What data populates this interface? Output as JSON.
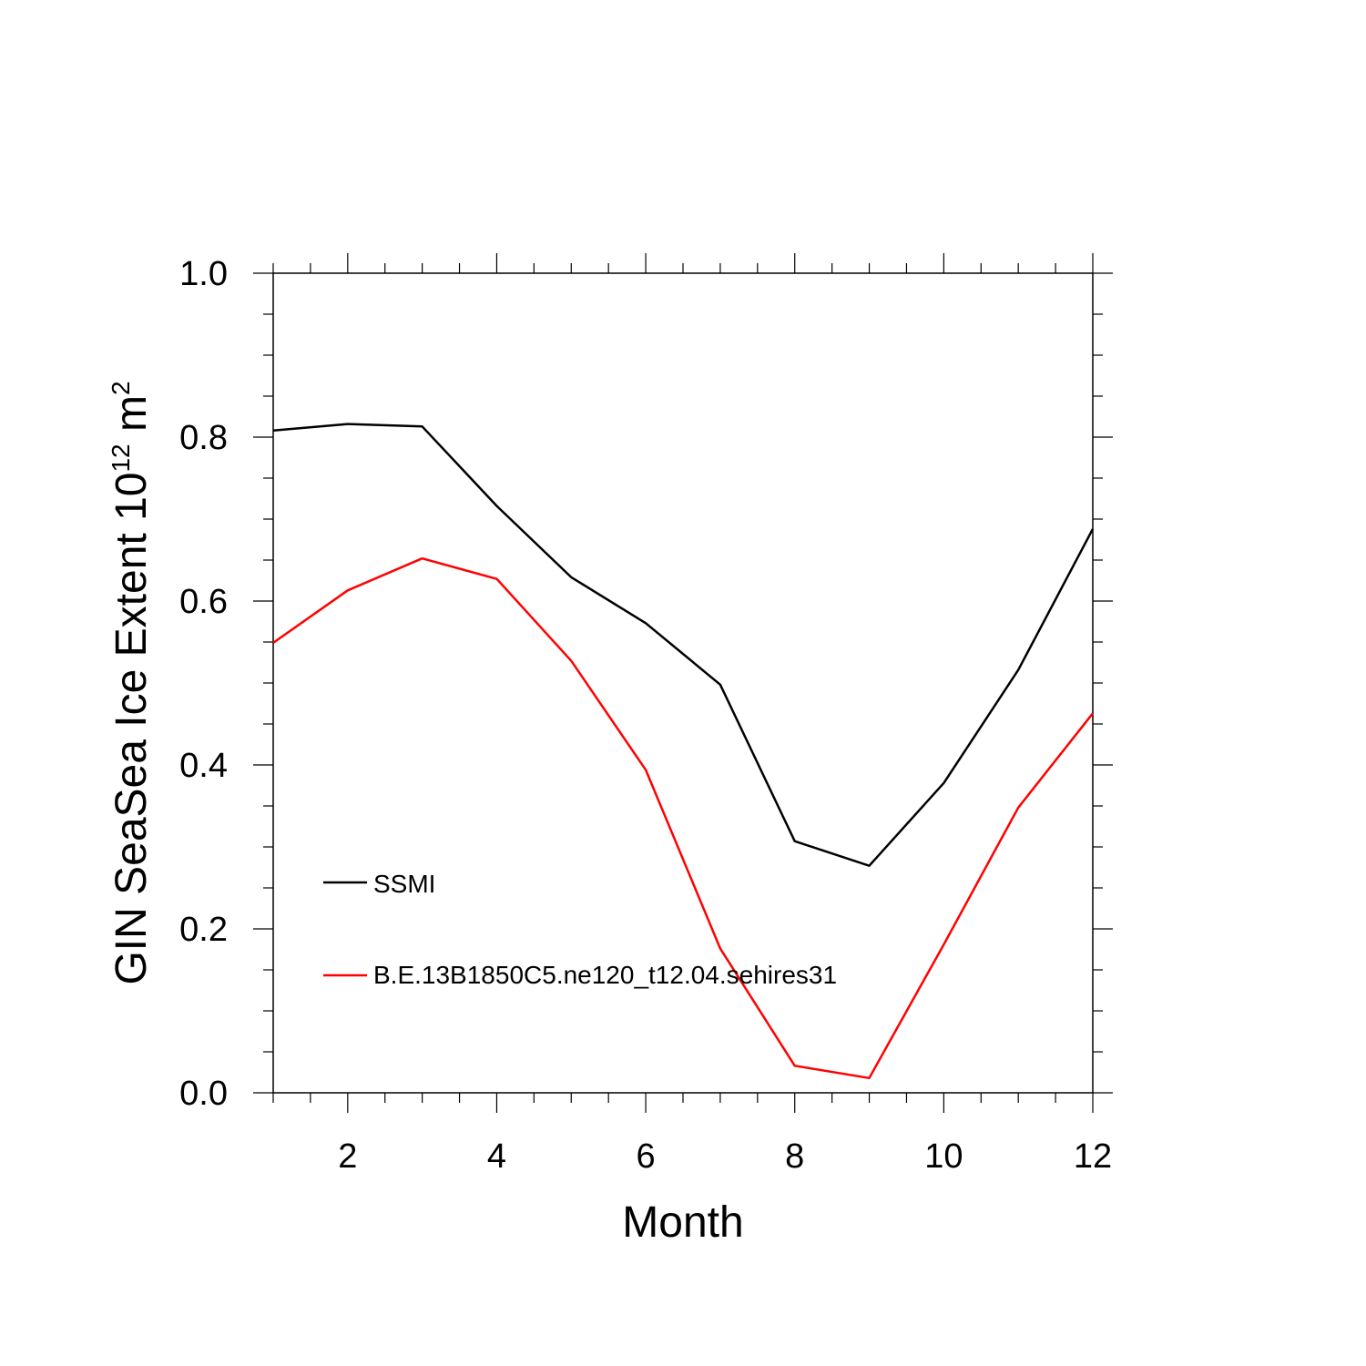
{
  "chart_data": {
    "type": "line",
    "xlabel": "Month",
    "ylabel": {
      "main": "GIN SeaSea Ice Extent 10",
      "exponent": "12",
      "unit": " m",
      "unit_exponent": "2"
    },
    "xlim": [
      1,
      12
    ],
    "ylim": [
      0,
      1.0
    ],
    "x_ticks": [
      2,
      4,
      6,
      8,
      10,
      12
    ],
    "x_tick_labels": [
      "2",
      "4",
      "6",
      "8",
      "10",
      "12"
    ],
    "y_ticks": [
      0,
      0.2,
      0.4,
      0.6,
      0.8,
      1.0
    ],
    "y_tick_labels": [
      "0.0",
      "0.2",
      "0.4",
      "0.6",
      "0.8",
      "1.0"
    ],
    "grid": false,
    "legend_placement": "lower-left",
    "x": [
      1,
      2,
      3,
      4,
      5,
      6,
      7,
      8,
      9,
      10,
      11,
      12
    ],
    "series": [
      {
        "name": "SSMI",
        "color": "#000000",
        "values": [
          0.808,
          0.816,
          0.813,
          0.716,
          0.629,
          0.573,
          0.498,
          0.307,
          0.277,
          0.378,
          0.516,
          0.688
        ]
      },
      {
        "name": "B.E.13B1850C5.ne120_t12.04.sehires31",
        "color": "#ff0000",
        "values": [
          0.549,
          0.613,
          0.652,
          0.627,
          0.527,
          0.394,
          0.176,
          0.033,
          0.018,
          0.181,
          0.348,
          0.463
        ]
      }
    ]
  }
}
